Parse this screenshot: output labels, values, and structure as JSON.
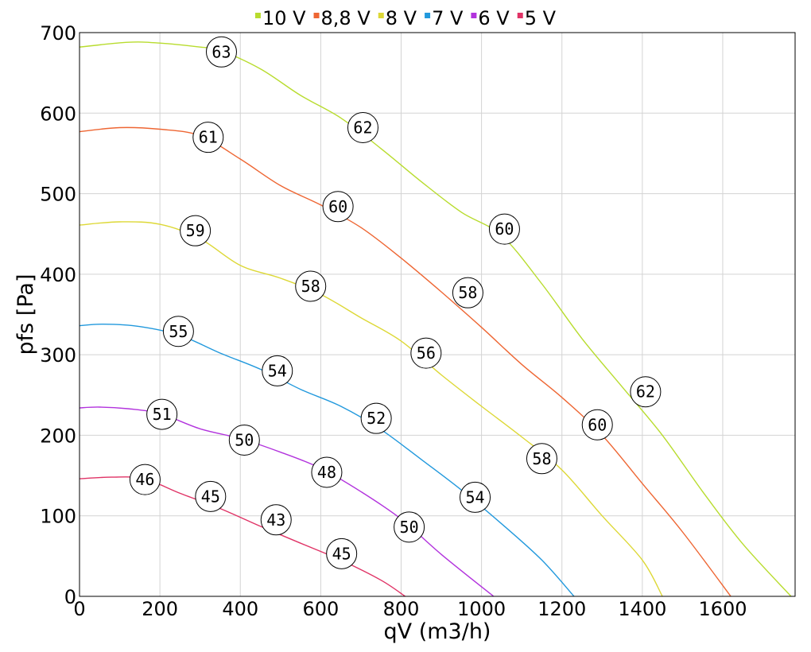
{
  "chart_data": {
    "type": "line",
    "xlabel": "qV (m3/h)",
    "ylabel": "pfs [Pa]",
    "xlim": [
      0,
      1780
    ],
    "ylim": [
      0,
      700
    ],
    "xticks": [
      0,
      200,
      400,
      600,
      800,
      1000,
      1200,
      1400,
      1600
    ],
    "yticks": [
      0,
      100,
      200,
      300,
      400,
      500,
      600,
      700
    ],
    "grid": true,
    "legend_position": "top-center",
    "series": [
      {
        "name": "10 V",
        "color": "#b8dc2e",
        "points": [
          [
            0,
            682
          ],
          [
            120,
            688
          ],
          [
            200,
            687
          ],
          [
            300,
            682
          ],
          [
            350,
            678
          ],
          [
            450,
            655
          ],
          [
            550,
            622
          ],
          [
            650,
            594
          ],
          [
            750,
            556
          ],
          [
            850,
            515
          ],
          [
            950,
            477
          ],
          [
            1050,
            448
          ],
          [
            1150,
            388
          ],
          [
            1250,
            320
          ],
          [
            1350,
            260
          ],
          [
            1450,
            200
          ],
          [
            1550,
            130
          ],
          [
            1650,
            65
          ],
          [
            1770,
            0
          ]
        ],
        "markers": [
          {
            "x": 353,
            "y": 676,
            "label": "63"
          },
          {
            "x": 705,
            "y": 582,
            "label": "62"
          },
          {
            "x": 1057,
            "y": 456,
            "label": "60"
          },
          {
            "x": 1408,
            "y": 254,
            "label": "62"
          }
        ]
      },
      {
        "name": "8,8 V",
        "color": "#ee6633",
        "points": [
          [
            0,
            577
          ],
          [
            100,
            582
          ],
          [
            200,
            580
          ],
          [
            300,
            572
          ],
          [
            400,
            543
          ],
          [
            500,
            510
          ],
          [
            600,
            486
          ],
          [
            700,
            458
          ],
          [
            800,
            420
          ],
          [
            900,
            378
          ],
          [
            1000,
            334
          ],
          [
            1100,
            288
          ],
          [
            1200,
            247
          ],
          [
            1300,
            200
          ],
          [
            1400,
            140
          ],
          [
            1500,
            80
          ],
          [
            1620,
            0
          ]
        ],
        "markers": [
          {
            "x": 320,
            "y": 570,
            "label": "61"
          },
          {
            "x": 643,
            "y": 484,
            "label": "60"
          },
          {
            "x": 966,
            "y": 377,
            "label": "58"
          },
          {
            "x": 1288,
            "y": 213,
            "label": "60"
          }
        ]
      },
      {
        "name": "8 V",
        "color": "#ddd836",
        "points": [
          [
            0,
            461
          ],
          [
            100,
            465
          ],
          [
            200,
            462
          ],
          [
            300,
            444
          ],
          [
            400,
            411
          ],
          [
            500,
            395
          ],
          [
            600,
            375
          ],
          [
            700,
            346
          ],
          [
            800,
            317
          ],
          [
            900,
            275
          ],
          [
            1000,
            236
          ],
          [
            1100,
            198
          ],
          [
            1200,
            157
          ],
          [
            1300,
            100
          ],
          [
            1400,
            45
          ],
          [
            1450,
            0
          ]
        ],
        "markers": [
          {
            "x": 288,
            "y": 454,
            "label": "59"
          },
          {
            "x": 575,
            "y": 385,
            "label": "58"
          },
          {
            "x": 862,
            "y": 302,
            "label": "56"
          },
          {
            "x": 1150,
            "y": 171,
            "label": "58"
          }
        ]
      },
      {
        "name": "7 V",
        "color": "#2299dd",
        "points": [
          [
            0,
            336
          ],
          [
            60,
            338
          ],
          [
            150,
            335
          ],
          [
            250,
            324
          ],
          [
            350,
            302
          ],
          [
            450,
            282
          ],
          [
            550,
            257
          ],
          [
            650,
            236
          ],
          [
            750,
            207
          ],
          [
            850,
            170
          ],
          [
            950,
            132
          ],
          [
            1050,
            90
          ],
          [
            1150,
            45
          ],
          [
            1230,
            0
          ]
        ],
        "markers": [
          {
            "x": 246,
            "y": 329,
            "label": "55"
          },
          {
            "x": 492,
            "y": 280,
            "label": "54"
          },
          {
            "x": 738,
            "y": 221,
            "label": "52"
          },
          {
            "x": 984,
            "y": 123,
            "label": "54"
          }
        ]
      },
      {
        "name": "6 V",
        "color": "#b233dd",
        "points": [
          [
            0,
            234
          ],
          [
            50,
            235
          ],
          [
            120,
            233
          ],
          [
            200,
            227
          ],
          [
            300,
            208
          ],
          [
            400,
            196
          ],
          [
            500,
            179
          ],
          [
            600,
            159
          ],
          [
            700,
            130
          ],
          [
            800,
            96
          ],
          [
            900,
            52
          ],
          [
            1030,
            0
          ]
        ],
        "markers": [
          {
            "x": 205,
            "y": 226,
            "label": "51"
          },
          {
            "x": 410,
            "y": 194,
            "label": "50"
          },
          {
            "x": 615,
            "y": 154,
            "label": "48"
          },
          {
            "x": 820,
            "y": 86,
            "label": "50"
          }
        ]
      },
      {
        "name": "5 V",
        "color": "#e03366",
        "points": [
          [
            0,
            146
          ],
          [
            80,
            148
          ],
          [
            160,
            146
          ],
          [
            250,
            128
          ],
          [
            350,
            109
          ],
          [
            450,
            87
          ],
          [
            550,
            66
          ],
          [
            650,
            45
          ],
          [
            750,
            20
          ],
          [
            810,
            0
          ]
        ],
        "markers": [
          {
            "x": 163,
            "y": 145,
            "label": "46"
          },
          {
            "x": 326,
            "y": 124,
            "label": "45"
          },
          {
            "x": 489,
            "y": 95,
            "label": "43"
          },
          {
            "x": 652,
            "y": 53,
            "label": "45"
          }
        ]
      }
    ]
  }
}
